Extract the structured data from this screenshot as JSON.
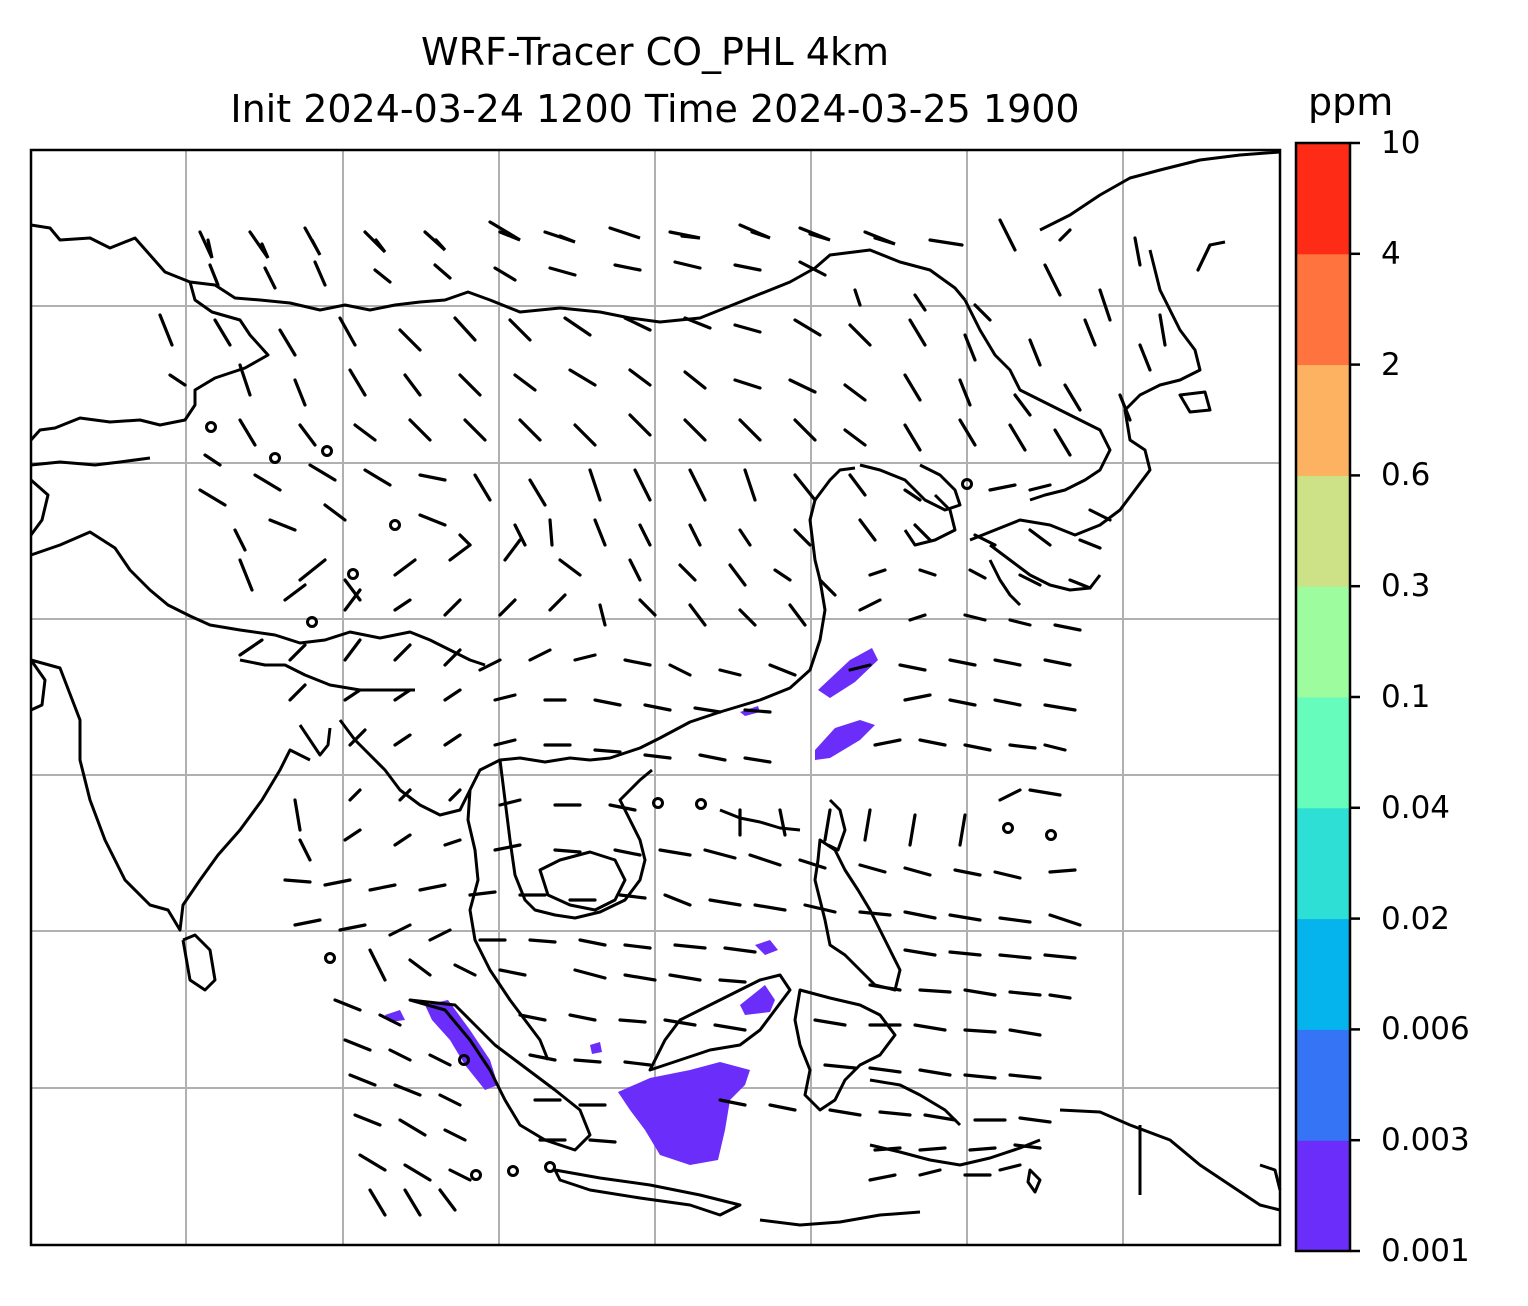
{
  "title": {
    "line1": "WRF-Tracer CO_PHL 4km",
    "line2": "Init 2024-03-24 1200 Time 2024-03-25 1900"
  },
  "colorbar": {
    "unit": "ppm",
    "levels": [
      "0.001",
      "0.003",
      "0.006",
      "0.02",
      "0.04",
      "0.1",
      "0.3",
      "0.6",
      "2",
      "4",
      "10"
    ],
    "colors": [
      "#6a2dfa",
      "#3575f5",
      "#05b3ed",
      "#2ddfd5",
      "#65fcbc",
      "#9dfc9e",
      "#cde186",
      "#fdb262",
      "#ff733f",
      "#fe2b17"
    ]
  },
  "map": {
    "grid_color": "#b0b0b0",
    "tracer_color": "#6a2dfa",
    "coastline_color": "#000000",
    "barb_color": "#000000"
  }
}
